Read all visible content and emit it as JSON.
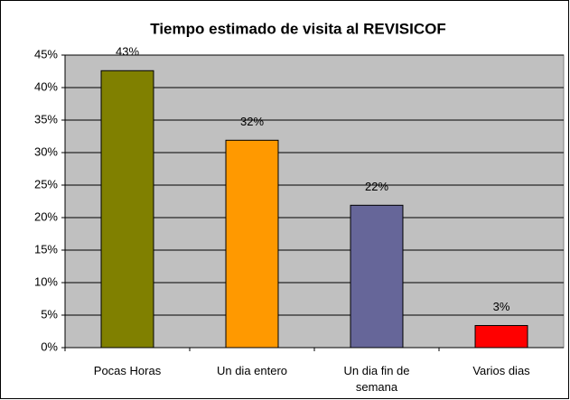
{
  "chart_data": {
    "type": "bar",
    "title": "Tiempo estimado de visita al REVISICOF",
    "categories": [
      "Pocas Horas",
      "Un dia entero",
      "Un dia fin de semana",
      "Varios dias"
    ],
    "values": [
      42.6,
      31.9,
      21.9,
      3.4
    ],
    "value_labels": [
      "43%",
      "32%",
      "22%",
      "3%"
    ],
    "colors": [
      "#808000",
      "#ff9900",
      "#666699",
      "#ff0000"
    ],
    "ylim": [
      0,
      45
    ],
    "yticks": [
      {
        "value": 0,
        "label": "0%"
      },
      {
        "value": 5,
        "label": "5%"
      },
      {
        "value": 10,
        "label": "10%"
      },
      {
        "value": 15,
        "label": "15%"
      },
      {
        "value": 20,
        "label": "20%"
      },
      {
        "value": 25,
        "label": "25%"
      },
      {
        "value": 30,
        "label": "30%"
      },
      {
        "value": 35,
        "label": "35%"
      },
      {
        "value": 40,
        "label": "40%"
      },
      {
        "value": 45,
        "label": "45%"
      }
    ],
    "grid": true
  }
}
